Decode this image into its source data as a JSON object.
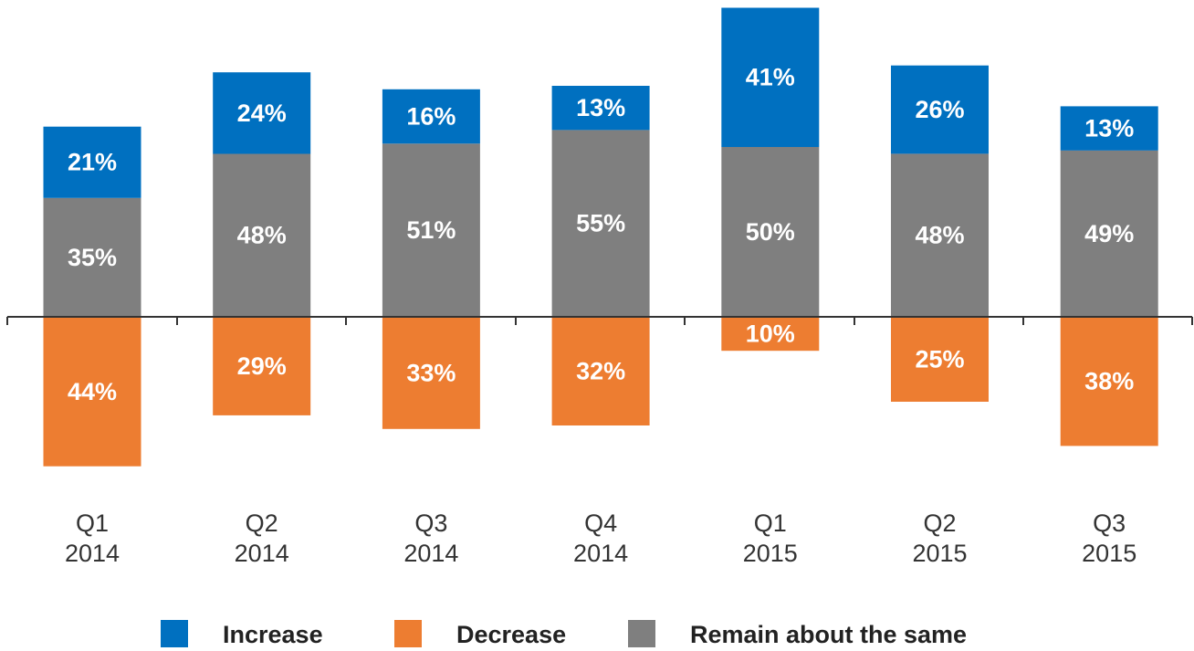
{
  "chart_data": {
    "type": "bar",
    "stacked": true,
    "diverging": true,
    "categories": [
      [
        "Q1",
        "2014"
      ],
      [
        "Q2",
        "2014"
      ],
      [
        "Q3",
        "2014"
      ],
      [
        "Q4",
        "2014"
      ],
      [
        "Q1",
        "2015"
      ],
      [
        "Q2",
        "2015"
      ],
      [
        "Q3",
        "2015"
      ]
    ],
    "series": [
      {
        "name": "Remain about the same",
        "color": "#7f7f7f",
        "direction": "up",
        "values": [
          35,
          48,
          51,
          55,
          50,
          48,
          49
        ],
        "labels": [
          "35%",
          "48%",
          "51%",
          "55%",
          "50%",
          "48%",
          "49%"
        ]
      },
      {
        "name": "Increase",
        "color": "#0070c0",
        "direction": "up",
        "values": [
          21,
          24,
          16,
          13,
          41,
          26,
          13
        ],
        "labels": [
          "21%",
          "24%",
          "16%",
          "13%",
          "41%",
          "26%",
          "13%"
        ]
      },
      {
        "name": "Decrease",
        "color": "#ed7d31",
        "direction": "down",
        "values": [
          44,
          29,
          33,
          32,
          10,
          25,
          38
        ],
        "labels": [
          "44%",
          "29%",
          "33%",
          "32%",
          "10%",
          "25%",
          "38%"
        ]
      }
    ],
    "legend": {
      "position": "bottom",
      "order": [
        "Increase",
        "Decrease",
        "Remain about the same"
      ]
    },
    "title": "",
    "xlabel": "",
    "ylabel": "",
    "grid": false
  }
}
